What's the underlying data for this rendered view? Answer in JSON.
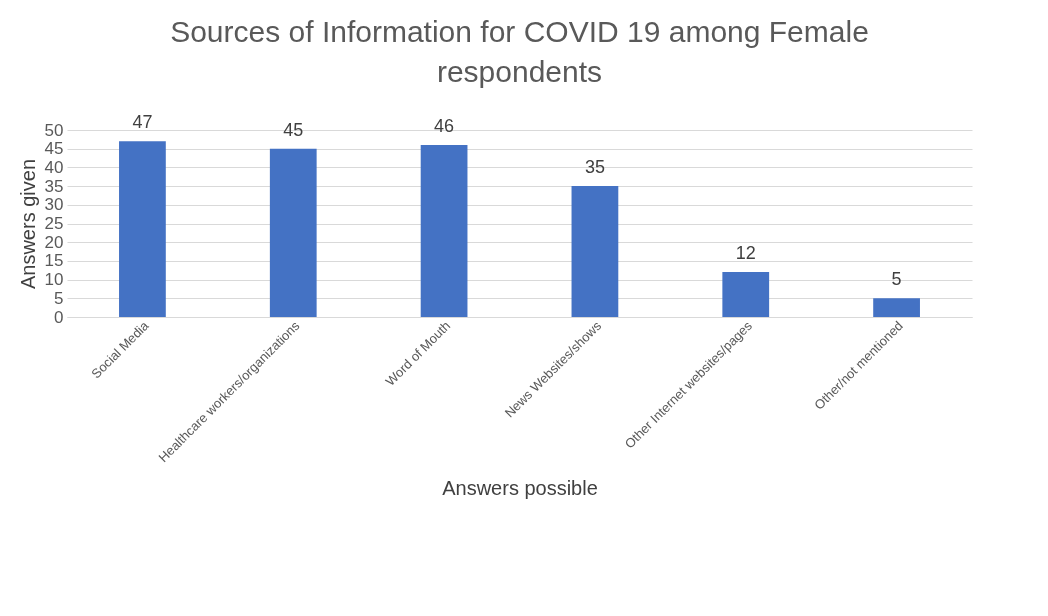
{
  "chart_data": {
    "type": "bar",
    "title": "Sources of Information for COVID 19 among Female respondents",
    "xlabel": "Answers possible",
    "ylabel": "Answers given",
    "categories": [
      "Social Media",
      "Healthcare workers/organizations",
      "Word of Mouth",
      "News Websites/shows",
      "Other Internet websites/pages",
      "Other/not mentioned"
    ],
    "values": [
      47,
      45,
      46,
      35,
      12,
      5
    ],
    "color": "#4472c4",
    "ylim": [
      0,
      50
    ],
    "yticks": [
      0,
      5,
      10,
      15,
      20,
      25,
      30,
      35,
      40,
      45,
      50
    ],
    "grid": true,
    "data_labels": true
  }
}
